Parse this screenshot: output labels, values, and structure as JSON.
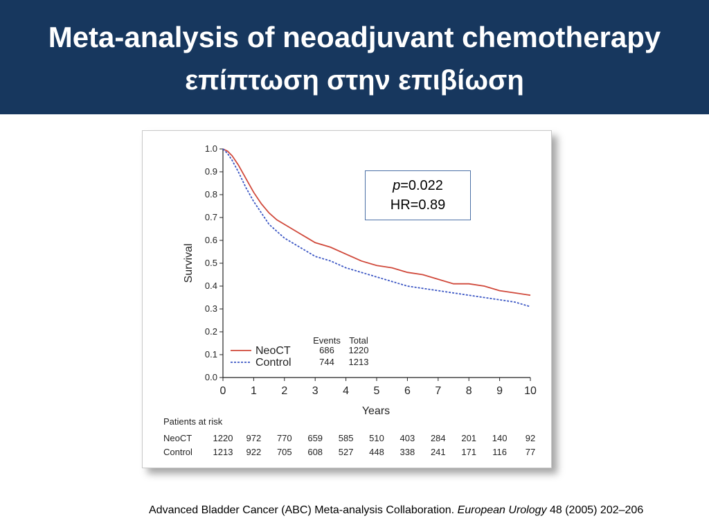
{
  "slide": {
    "title_line1": "Meta-analysis of neoadjuvant chemotherapy",
    "title_line2": "επίπτωση στην επιβίωση",
    "header_color": "#17375e"
  },
  "stats": {
    "p_label": "p",
    "p_value": "=0.022",
    "hr": "HR=0.89"
  },
  "citation": {
    "authors": "Advanced Bladder Cancer (ABC) Meta-analysis Collaboration.",
    "journal": "European Urology",
    "details": "48 (2005) 202–206"
  },
  "chart_data": {
    "type": "line",
    "xlabel": "Years",
    "ylabel": "Survival",
    "xlim": [
      0,
      10
    ],
    "ylim": [
      0.0,
      1.0
    ],
    "x_ticks": [
      "0",
      "1",
      "2",
      "3",
      "4",
      "5",
      "6",
      "7",
      "8",
      "9",
      "10"
    ],
    "y_ticks": [
      "0.0",
      "0.1",
      "0.2",
      "0.3",
      "0.4",
      "0.5",
      "0.6",
      "0.7",
      "0.8",
      "0.9",
      "1.0"
    ],
    "grid": false,
    "legend_placement": "bottom-left",
    "events_header": "Events",
    "total_header": "Total",
    "series": [
      {
        "name": "NeoCT",
        "color": "#d0483a",
        "dash": "solid",
        "events": "686",
        "total": "1220",
        "points": [
          [
            0,
            1.0
          ],
          [
            0.15,
            0.99
          ],
          [
            0.3,
            0.97
          ],
          [
            0.5,
            0.93
          ],
          [
            0.75,
            0.87
          ],
          [
            1.0,
            0.81
          ],
          [
            1.25,
            0.76
          ],
          [
            1.5,
            0.72
          ],
          [
            1.75,
            0.69
          ],
          [
            2.0,
            0.67
          ],
          [
            2.25,
            0.65
          ],
          [
            2.5,
            0.63
          ],
          [
            2.75,
            0.61
          ],
          [
            3.0,
            0.59
          ],
          [
            3.5,
            0.57
          ],
          [
            4.0,
            0.54
          ],
          [
            4.5,
            0.51
          ],
          [
            5.0,
            0.49
          ],
          [
            5.5,
            0.48
          ],
          [
            6.0,
            0.46
          ],
          [
            6.5,
            0.45
          ],
          [
            7.0,
            0.43
          ],
          [
            7.5,
            0.41
          ],
          [
            8.0,
            0.41
          ],
          [
            8.5,
            0.4
          ],
          [
            9.0,
            0.38
          ],
          [
            9.5,
            0.37
          ],
          [
            10.0,
            0.36
          ]
        ]
      },
      {
        "name": "Control",
        "color": "#3b56c4",
        "dash": "dashed",
        "events": "744",
        "total": "1213",
        "points": [
          [
            0,
            1.0
          ],
          [
            0.15,
            0.98
          ],
          [
            0.3,
            0.95
          ],
          [
            0.5,
            0.9
          ],
          [
            0.75,
            0.83
          ],
          [
            1.0,
            0.77
          ],
          [
            1.25,
            0.72
          ],
          [
            1.5,
            0.67
          ],
          [
            1.75,
            0.64
          ],
          [
            2.0,
            0.61
          ],
          [
            2.25,
            0.59
          ],
          [
            2.5,
            0.57
          ],
          [
            2.75,
            0.55
          ],
          [
            3.0,
            0.53
          ],
          [
            3.5,
            0.51
          ],
          [
            4.0,
            0.48
          ],
          [
            4.5,
            0.46
          ],
          [
            5.0,
            0.44
          ],
          [
            5.5,
            0.42
          ],
          [
            6.0,
            0.4
          ],
          [
            6.5,
            0.39
          ],
          [
            7.0,
            0.38
          ],
          [
            7.5,
            0.37
          ],
          [
            8.0,
            0.36
          ],
          [
            8.5,
            0.35
          ],
          [
            9.0,
            0.34
          ],
          [
            9.5,
            0.33
          ],
          [
            10.0,
            0.31
          ]
        ]
      }
    ],
    "at_risk": {
      "header": "Patients at risk",
      "rows": [
        {
          "label": "NeoCT",
          "values": [
            "1220",
            "972",
            "770",
            "659",
            "585",
            "510",
            "403",
            "284",
            "201",
            "140",
            "92"
          ]
        },
        {
          "label": "Control",
          "values": [
            "1213",
            "922",
            "705",
            "608",
            "527",
            "448",
            "338",
            "241",
            "171",
            "116",
            "77"
          ]
        }
      ]
    }
  }
}
